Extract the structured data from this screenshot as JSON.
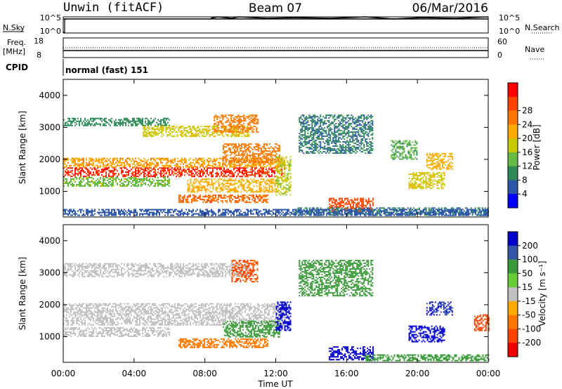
{
  "header": {
    "station": "Unwin (fitACF)",
    "beam": "Beam 07",
    "date": "06/Mar/2016"
  },
  "top_panels": {
    "nsky_label": "N.Sky",
    "nsky_ticks": [
      "10^5",
      "10^0"
    ],
    "nsearch_label": "N.Search",
    "nsearch_ticks": [
      "10^5",
      "10^0"
    ],
    "freq_label": "Freq.",
    "freq_unit": "[MHz]",
    "freq_ticks": [
      "18",
      "8"
    ],
    "nave_label": "Nave",
    "nave_ticks": [
      "60",
      "0"
    ],
    "cpid_label": "CPID",
    "cpid_value": "normal (fast) 151"
  },
  "x_axis": {
    "label": "Time UT",
    "ticks": [
      "00:00",
      "04:00",
      "08:00",
      "12:00",
      "16:00",
      "20:00",
      "00:00"
    ]
  },
  "colors": {
    "power": [
      "#0000ff",
      "#2a55a8",
      "#2e8b57",
      "#66bb44",
      "#c8c800",
      "#ffaa00",
      "#ff7700",
      "#ff4400",
      "#ff0000"
    ],
    "velocity": [
      "#0000cc",
      "#3355aa",
      "#3a9a3a",
      "#66cc33",
      "#c0c0c0",
      "#ffaa00",
      "#ff7700",
      "#ff4400",
      "#ee0000"
    ]
  },
  "chart_data": [
    {
      "type": "heatmap",
      "panel": "power",
      "xlabel": "Time UT",
      "ylabel": "Slant Range [km]",
      "xlim": [
        0,
        24
      ],
      "ylim": [
        200,
        4500
      ],
      "yticks": [
        "1000",
        "2000",
        "3000",
        "4000"
      ],
      "colorbar": {
        "label": "Power [dB]",
        "ticks": [
          "4",
          "8",
          "12",
          "16",
          "20",
          "24",
          "28"
        ],
        "range": [
          0,
          30
        ]
      },
      "regions": [
        {
          "t": [
            0.0,
            6.0
          ],
          "r": [
            3050,
            3300
          ],
          "level": 8
        },
        {
          "t": [
            4.5,
            10.5
          ],
          "r": [
            2700,
            3050
          ],
          "level": 16
        },
        {
          "t": [
            8.5,
            11.0
          ],
          "r": [
            2850,
            3400
          ],
          "level": 22
        },
        {
          "t": [
            0.0,
            12.5
          ],
          "r": [
            1450,
            1750
          ],
          "level": 28
        },
        {
          "t": [
            0.0,
            12.5
          ],
          "r": [
            1750,
            2050
          ],
          "level": 20
        },
        {
          "t": [
            0.0,
            6.0
          ],
          "r": [
            1150,
            1450
          ],
          "level": 12
        },
        {
          "t": [
            6.5,
            11.5
          ],
          "r": [
            650,
            900
          ],
          "level": 24
        },
        {
          "t": [
            7.0,
            12.0
          ],
          "r": [
            1000,
            1400
          ],
          "level": 18
        },
        {
          "t": [
            9.0,
            12.2
          ],
          "r": [
            1900,
            2500
          ],
          "level": 22
        },
        {
          "t": [
            12.0,
            12.8
          ],
          "r": [
            900,
            2100
          ],
          "level": 14
        },
        {
          "t": [
            13.3,
            17.5
          ],
          "r": [
            2200,
            3400
          ],
          "level": 6
        },
        {
          "t": [
            15.0,
            17.5
          ],
          "r": [
            400,
            800
          ],
          "level": 26
        },
        {
          "t": [
            13.0,
            24.0
          ],
          "r": [
            250,
            500
          ],
          "level": 6
        },
        {
          "t": [
            18.5,
            20.0
          ],
          "r": [
            2000,
            2600
          ],
          "level": 10
        },
        {
          "t": [
            19.5,
            21.5
          ],
          "r": [
            1100,
            1600
          ],
          "level": 16
        },
        {
          "t": [
            20.5,
            22.0
          ],
          "r": [
            1700,
            2200
          ],
          "level": 18
        },
        {
          "t": [
            0.0,
            24.0
          ],
          "r": [
            250,
            450
          ],
          "level": 4
        }
      ]
    },
    {
      "type": "heatmap",
      "panel": "velocity",
      "xlabel": "Time UT",
      "ylabel": "Slant Range [km]",
      "xlim": [
        0,
        24
      ],
      "ylim": [
        200,
        4500
      ],
      "yticks": [
        "1000",
        "2000",
        "3000",
        "4000"
      ],
      "colorbar": {
        "label": "Velocity [m s⁻¹]",
        "ticks": [
          "200",
          "100",
          "50",
          "15",
          "-15",
          "-50",
          "-100",
          "-200"
        ],
        "range": [
          -250,
          250
        ]
      },
      "regions": [
        {
          "t": [
            0.0,
            10.5
          ],
          "r": [
            2900,
            3300
          ],
          "level": 0
        },
        {
          "t": [
            9.5,
            11.0
          ],
          "r": [
            2700,
            3400
          ],
          "level": -80
        },
        {
          "t": [
            0.0,
            12.5
          ],
          "r": [
            1350,
            2050
          ],
          "level": 0
        },
        {
          "t": [
            0.0,
            6.0
          ],
          "r": [
            1000,
            1300
          ],
          "level": 0
        },
        {
          "t": [
            6.5,
            11.5
          ],
          "r": [
            650,
            950
          ],
          "level": -40
        },
        {
          "t": [
            9.0,
            12.2
          ],
          "r": [
            1000,
            1500
          ],
          "level": 40
        },
        {
          "t": [
            12.0,
            12.8
          ],
          "r": [
            1200,
            2100
          ],
          "level": 160
        },
        {
          "t": [
            13.3,
            17.5
          ],
          "r": [
            2300,
            3400
          ],
          "level": 40
        },
        {
          "t": [
            15.0,
            17.5
          ],
          "r": [
            300,
            700
          ],
          "level": 180
        },
        {
          "t": [
            17.0,
            24.0
          ],
          "r": [
            250,
            450
          ],
          "level": 40
        },
        {
          "t": [
            19.5,
            21.5
          ],
          "r": [
            850,
            1350
          ],
          "level": 200
        },
        {
          "t": [
            20.5,
            22.0
          ],
          "r": [
            1700,
            2100
          ],
          "level": 150
        },
        {
          "t": [
            23.2,
            24.0
          ],
          "r": [
            1200,
            1700
          ],
          "level": -100
        }
      ]
    }
  ]
}
